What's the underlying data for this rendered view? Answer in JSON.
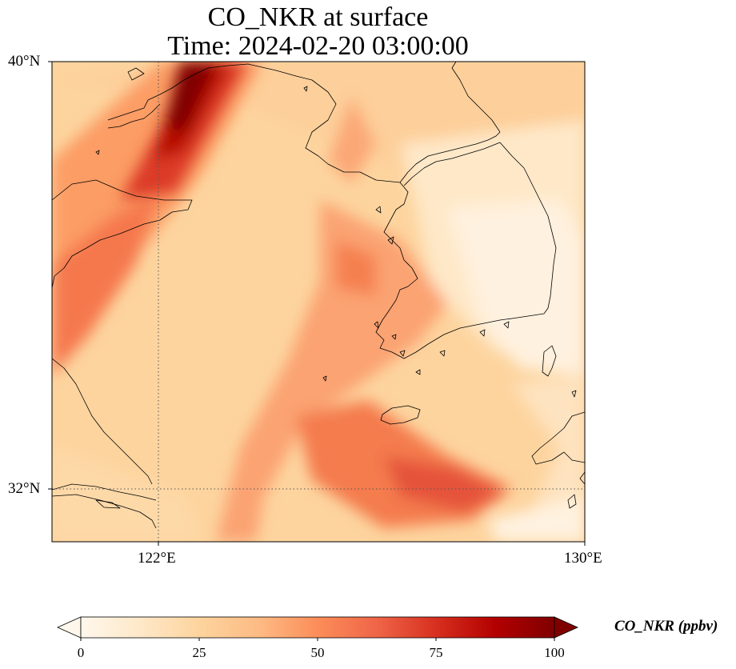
{
  "map": {
    "title_line1": "CO_NKR at surface",
    "title_line2": "Time: 2024-02-20 03:00:00",
    "lon_labels": [
      {
        "lon": 122,
        "text": "122°E"
      },
      {
        "lon": 130,
        "text": "130°E"
      }
    ],
    "lat_labels": [
      {
        "lat": 40,
        "text": "40°N"
      },
      {
        "lat": 32,
        "text": "32°N"
      }
    ],
    "gridlines": {
      "lon": 122,
      "lat": 32
    },
    "extent": {
      "lon_min": 120,
      "lon_max": 130,
      "lat_min": 31,
      "lat_max": 40
    }
  },
  "colorbar": {
    "label": "CO_NKR (ppbv)",
    "colormap": "OrRd",
    "colors": [
      "#fff7ec",
      "#fee8c8",
      "#fdd49e",
      "#fdbb84",
      "#fc8d59",
      "#ef6548",
      "#d7301f",
      "#b30000",
      "#7f0000"
    ],
    "min": 0,
    "max": 100,
    "extend": "both",
    "ticks": [
      "0",
      "25",
      "50",
      "75",
      "100"
    ]
  }
}
